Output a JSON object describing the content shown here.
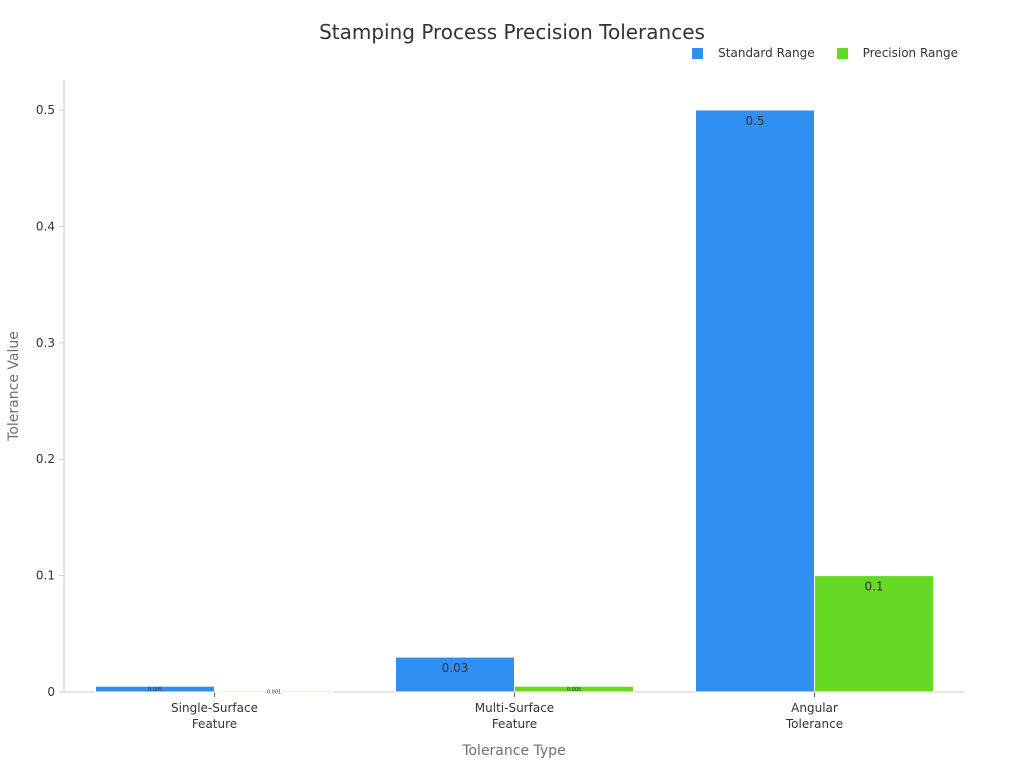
{
  "chart_data": {
    "type": "bar",
    "title": "Stamping Process Precision Tolerances",
    "xlabel": "Tolerance Type",
    "ylabel": "Tolerance Value",
    "categories": [
      [
        "Single-Surface",
        "Feature"
      ],
      [
        "Multi-Surface",
        "Feature"
      ],
      [
        "Angular",
        "Tolerance"
      ]
    ],
    "series": [
      {
        "name": "Standard Range",
        "color": "#2f8ff3",
        "values": [
          0.005,
          0.03,
          0.5
        ],
        "labels": [
          "0.005",
          "0.03",
          "0.5"
        ]
      },
      {
        "name": "Precision Range",
        "color": "#65d923",
        "values": [
          0.001,
          0.005,
          0.1
        ],
        "labels": [
          "0.001",
          "0.005",
          "0.1"
        ]
      }
    ],
    "ylim": [
      0,
      0.5
    ],
    "yticks": [
      "0",
      "0.1",
      "0.2",
      "0.3",
      "0.4",
      "0.5"
    ],
    "legend_position": "top-right",
    "grid": false
  }
}
